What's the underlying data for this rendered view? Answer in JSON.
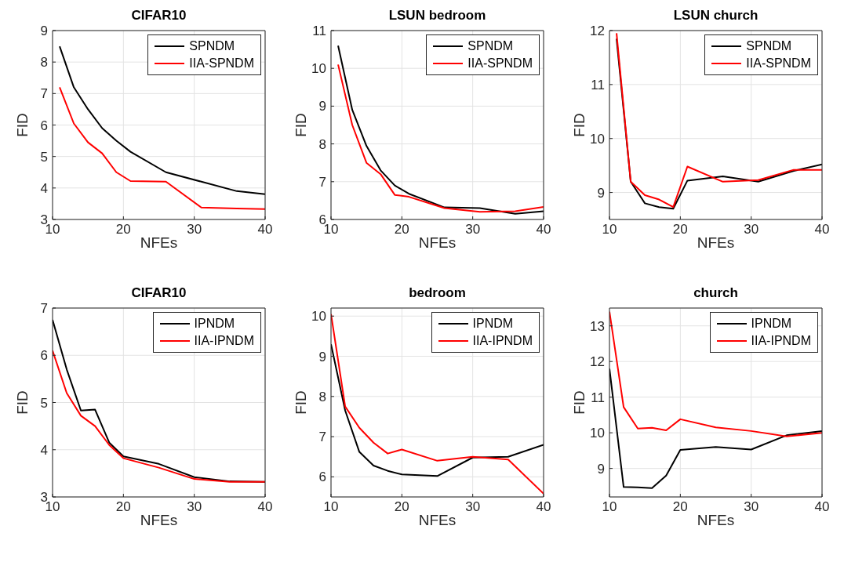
{
  "chart_data": [
    {
      "type": "line",
      "title": "CIFAR10",
      "xlabel": "NFEs",
      "ylabel": "FID",
      "x": [
        11,
        13,
        15,
        17,
        19,
        21,
        26,
        31,
        36,
        40
      ],
      "xlim": [
        10,
        40
      ],
      "xticks": [
        10,
        20,
        30,
        40
      ],
      "ylim": [
        3,
        9
      ],
      "yticks": [
        3,
        4,
        5,
        6,
        7,
        8,
        9
      ],
      "grid": true,
      "legend": "top right",
      "marker": "none",
      "line_style": "solid",
      "series": [
        {
          "name": "SPNDM",
          "color": "#000000",
          "values": [
            8.5,
            7.2,
            6.5,
            5.9,
            5.5,
            5.15,
            4.5,
            4.2,
            3.9,
            3.8
          ]
        },
        {
          "name": "IIA-SPNDM",
          "color": "#ff0000",
          "values": [
            7.2,
            6.05,
            5.45,
            5.1,
            4.5,
            4.22,
            4.2,
            3.38,
            3.35,
            3.33
          ]
        }
      ]
    },
    {
      "type": "line",
      "title": "LSUN bedroom",
      "xlabel": "NFEs",
      "ylabel": "FID",
      "x": [
        11,
        13,
        15,
        17,
        19,
        21,
        26,
        31,
        36,
        40
      ],
      "xlim": [
        10,
        40
      ],
      "xticks": [
        10,
        20,
        30,
        40
      ],
      "ylim": [
        6,
        11
      ],
      "yticks": [
        6,
        7,
        8,
        9,
        10,
        11
      ],
      "grid": true,
      "legend": "top right",
      "marker": "none",
      "line_style": "solid",
      "series": [
        {
          "name": "SPNDM",
          "color": "#000000",
          "values": [
            10.6,
            8.9,
            7.95,
            7.3,
            6.9,
            6.68,
            6.32,
            6.3,
            6.15,
            6.22
          ]
        },
        {
          "name": "IIA-SPNDM",
          "color": "#ff0000",
          "values": [
            10.1,
            8.5,
            7.5,
            7.2,
            6.65,
            6.6,
            6.3,
            6.2,
            6.22,
            6.33
          ]
        }
      ]
    },
    {
      "type": "line",
      "title": "LSUN church",
      "xlabel": "NFEs",
      "ylabel": "FID",
      "x": [
        11,
        13,
        15,
        17,
        19,
        21,
        26,
        31,
        36,
        40
      ],
      "xlim": [
        10,
        40
      ],
      "xticks": [
        10,
        20,
        30,
        40
      ],
      "ylim": [
        8.5,
        12
      ],
      "yticks": [
        9,
        10,
        11,
        12
      ],
      "grid": true,
      "legend": "top right",
      "marker": "none",
      "line_style": "solid",
      "series": [
        {
          "name": "SPNDM",
          "color": "#000000",
          "values": [
            11.85,
            9.2,
            8.8,
            8.73,
            8.7,
            9.22,
            9.3,
            9.2,
            9.4,
            9.52
          ]
        },
        {
          "name": "IIA-SPNDM",
          "color": "#ff0000",
          "values": [
            11.95,
            9.2,
            8.95,
            8.87,
            8.73,
            9.48,
            9.2,
            9.23,
            9.42,
            9.42
          ]
        }
      ]
    },
    {
      "type": "line",
      "title": "CIFAR10",
      "xlabel": "NFEs",
      "ylabel": "FID",
      "x": [
        10,
        12,
        14,
        16,
        18,
        20,
        25,
        30,
        35,
        40
      ],
      "xlim": [
        10,
        40
      ],
      "xticks": [
        10,
        20,
        30,
        40
      ],
      "ylim": [
        3,
        7
      ],
      "yticks": [
        3,
        4,
        5,
        6,
        7
      ],
      "grid": true,
      "legend": "top right",
      "marker": "none",
      "line_style": "solid",
      "series": [
        {
          "name": "IPNDM",
          "color": "#000000",
          "values": [
            6.75,
            5.7,
            4.83,
            4.85,
            4.15,
            3.86,
            3.7,
            3.42,
            3.33,
            3.32
          ]
        },
        {
          "name": "IIA-IPNDM",
          "color": "#ff0000",
          "values": [
            6.1,
            5.2,
            4.72,
            4.5,
            4.1,
            3.82,
            3.62,
            3.38,
            3.32,
            3.32
          ]
        }
      ]
    },
    {
      "type": "line",
      "title": "bedroom",
      "xlabel": "NFEs",
      "ylabel": "FID",
      "x": [
        10,
        12,
        14,
        16,
        18,
        20,
        25,
        30,
        35,
        40
      ],
      "xlim": [
        10,
        40
      ],
      "xticks": [
        10,
        20,
        30,
        40
      ],
      "ylim": [
        5.5,
        10.2
      ],
      "yticks": [
        6,
        7,
        8,
        9,
        10
      ],
      "grid": true,
      "legend": "top right",
      "marker": "none",
      "line_style": "solid",
      "series": [
        {
          "name": "IPNDM",
          "color": "#000000",
          "values": [
            9.3,
            7.65,
            6.62,
            6.28,
            6.15,
            6.06,
            6.02,
            6.48,
            6.5,
            6.8
          ]
        },
        {
          "name": "IIA-IPNDM",
          "color": "#ff0000",
          "values": [
            10.05,
            7.75,
            7.22,
            6.85,
            6.58,
            6.68,
            6.4,
            6.5,
            6.43,
            5.58
          ]
        }
      ]
    },
    {
      "type": "line",
      "title": "church",
      "xlabel": "NFEs",
      "ylabel": "FID",
      "x": [
        10,
        12,
        14,
        16,
        18,
        20,
        25,
        30,
        35,
        40
      ],
      "xlim": [
        10,
        40
      ],
      "xticks": [
        10,
        20,
        30,
        40
      ],
      "ylim": [
        8.2,
        13.5
      ],
      "yticks": [
        9,
        10,
        11,
        12,
        13
      ],
      "grid": true,
      "legend": "top right",
      "marker": "none",
      "line_style": "solid",
      "series": [
        {
          "name": "IPNDM",
          "color": "#000000",
          "values": [
            11.8,
            8.48,
            8.47,
            8.45,
            8.8,
            9.52,
            9.6,
            9.53,
            9.93,
            10.05
          ]
        },
        {
          "name": "IIA-IPNDM",
          "color": "#ff0000",
          "values": [
            13.4,
            10.72,
            10.12,
            10.14,
            10.07,
            10.38,
            10.15,
            10.05,
            9.9,
            10.0
          ]
        }
      ]
    }
  ]
}
